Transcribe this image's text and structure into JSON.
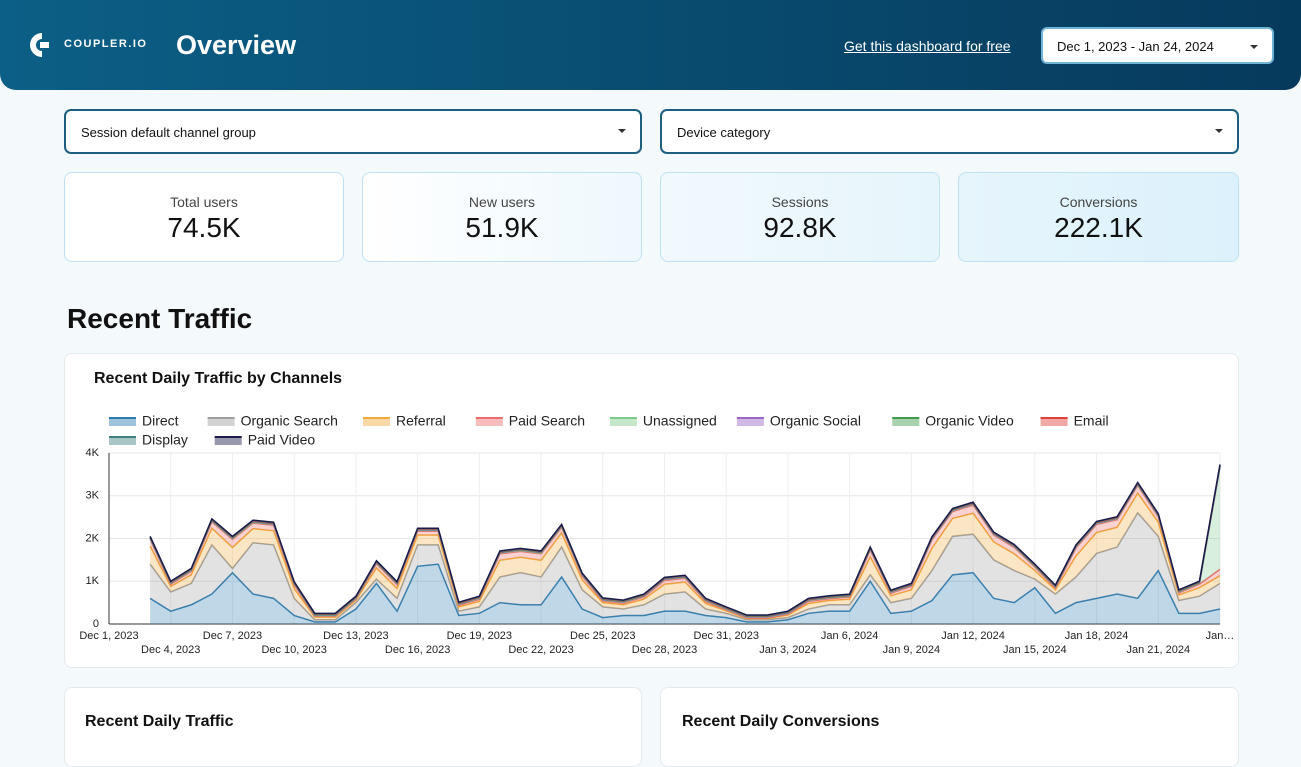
{
  "header": {
    "brand": "COUPLER.IO",
    "title": "Overview",
    "link": "Get this dashboard for free",
    "date_range": "Dec 1, 2023 - Jan 24, 2024"
  },
  "filters": [
    "Session default channel group",
    "Device category"
  ],
  "kpis": [
    {
      "label": "Total users",
      "value": "74.5K"
    },
    {
      "label": "New users",
      "value": "51.9K"
    },
    {
      "label": "Sessions",
      "value": "92.8K"
    },
    {
      "label": "Conversions",
      "value": "222.1K"
    }
  ],
  "section_title": "Recent Traffic",
  "bottom_cards": [
    "Recent Daily Traffic",
    "Recent Daily Conversions"
  ],
  "chart_data": {
    "type": "stacked_area",
    "title": "Recent Daily Traffic by Channels",
    "categories": [
      "Dec 1, 2023",
      null,
      null,
      "Dec 4, 2023",
      null,
      null,
      "Dec 7, 2023",
      null,
      null,
      "Dec 10, 2023",
      null,
      null,
      "Dec 13, 2023",
      null,
      null,
      "Dec 16, 2023",
      null,
      null,
      "Dec 19, 2023",
      null,
      null,
      "Dec 22, 2023",
      null,
      null,
      "Dec 25, 2023",
      null,
      null,
      "Dec 28, 2023",
      null,
      null,
      "Dec 31, 2023",
      null,
      null,
      "Jan 3, 2024",
      null,
      null,
      "Jan 6, 2024",
      null,
      null,
      "Jan 9, 2024",
      null,
      null,
      "Jan 12, 2024",
      null,
      null,
      "Jan 15, 2024",
      null,
      null,
      "Jan 18, 2024",
      null,
      null,
      "Jan 21, 2024",
      null,
      null,
      "Jan…"
    ],
    "ylim": [
      0,
      4000
    ],
    "yticks": [
      0,
      {
        "value": 1000,
        "label": "1K"
      },
      {
        "value": 2000,
        "label": "2K"
      },
      {
        "value": 3000,
        "label": "3K"
      },
      {
        "value": 4000,
        "label": "4K"
      }
    ],
    "grid": true,
    "legend": "top",
    "series": [
      {
        "name": "Direct",
        "color": "#2a7bb0",
        "values": [
          null,
          null,
          600,
          300,
          450,
          700,
          1200,
          700,
          600,
          200,
          50,
          50,
          350,
          950,
          300,
          1350,
          1400,
          200,
          250,
          500,
          450,
          450,
          1100,
          350,
          150,
          200,
          200,
          300,
          300,
          200,
          150,
          50,
          50,
          100,
          250,
          300,
          300,
          1000,
          250,
          300,
          550,
          1150,
          1200,
          600,
          500,
          850,
          250,
          500,
          600,
          700,
          600,
          1250,
          250,
          250,
          350
        ]
      },
      {
        "name": "Organic Search",
        "color": "#9e9e9e",
        "values": [
          null,
          null,
          800,
          450,
          500,
          1150,
          100,
          1200,
          1250,
          400,
          50,
          50,
          150,
          100,
          300,
          500,
          450,
          100,
          150,
          600,
          750,
          650,
          700,
          450,
          250,
          150,
          250,
          400,
          450,
          150,
          100,
          50,
          50,
          50,
          100,
          150,
          150,
          150,
          250,
          300,
          700,
          900,
          900,
          900,
          750,
          200,
          450,
          600,
          1050,
          1100,
          2000,
          800,
          300,
          400,
          600
        ]
      },
      {
        "name": "Referral",
        "color": "#f0a93a",
        "values": [
          null,
          null,
          420,
          130,
          200,
          390,
          490,
          330,
          330,
          230,
          60,
          60,
          60,
          260,
          230,
          230,
          230,
          100,
          130,
          390,
          360,
          390,
          330,
          230,
          100,
          100,
          130,
          230,
          230,
          130,
          60,
          30,
          30,
          60,
          130,
          100,
          130,
          420,
          160,
          200,
          520,
          420,
          490,
          420,
          390,
          200,
          100,
          490,
          490,
          460,
          460,
          330,
          130,
          200,
          180
        ]
      },
      {
        "name": "Paid Search",
        "color": "#ee6b6b",
        "values": [
          null,
          null,
          160,
          50,
          80,
          150,
          190,
          130,
          130,
          90,
          20,
          20,
          20,
          100,
          90,
          90,
          90,
          40,
          50,
          150,
          140,
          150,
          130,
          90,
          40,
          40,
          50,
          90,
          90,
          50,
          20,
          10,
          10,
          20,
          50,
          40,
          50,
          160,
          60,
          80,
          200,
          160,
          190,
          160,
          150,
          80,
          40,
          190,
          190,
          180,
          180,
          130,
          50,
          80,
          150
        ]
      },
      {
        "name": "Unassigned",
        "color": "#7cc98a",
        "values": [
          null,
          null,
          20,
          20,
          20,
          20,
          20,
          20,
          20,
          20,
          20,
          20,
          20,
          20,
          20,
          20,
          20,
          20,
          20,
          20,
          20,
          20,
          20,
          20,
          20,
          20,
          20,
          20,
          20,
          20,
          20,
          20,
          20,
          20,
          20,
          20,
          20,
          20,
          20,
          20,
          20,
          20,
          20,
          20,
          20,
          20,
          20,
          20,
          20,
          20,
          20,
          20,
          20,
          20,
          2400
        ]
      },
      {
        "name": "Organic Social",
        "color": "#9a64c8",
        "values": [
          null,
          null,
          10,
          10,
          10,
          10,
          10,
          10,
          10,
          10,
          10,
          10,
          10,
          10,
          10,
          10,
          10,
          10,
          10,
          10,
          10,
          10,
          10,
          10,
          10,
          10,
          10,
          10,
          10,
          10,
          10,
          10,
          10,
          10,
          10,
          10,
          10,
          10,
          10,
          10,
          10,
          10,
          10,
          10,
          10,
          10,
          10,
          10,
          10,
          10,
          10,
          10,
          10,
          10,
          10
        ]
      },
      {
        "name": "Organic Video",
        "color": "#3f9b4a",
        "values": [
          null,
          null,
          10,
          10,
          10,
          10,
          10,
          10,
          10,
          10,
          10,
          10,
          10,
          10,
          10,
          10,
          10,
          10,
          10,
          10,
          10,
          10,
          10,
          10,
          10,
          10,
          10,
          10,
          10,
          10,
          10,
          10,
          10,
          10,
          10,
          10,
          10,
          10,
          10,
          10,
          10,
          10,
          10,
          10,
          10,
          10,
          10,
          10,
          10,
          10,
          10,
          10,
          10,
          10,
          10
        ]
      },
      {
        "name": "Email",
        "color": "#e0403a",
        "values": [
          null,
          null,
          10,
          10,
          10,
          10,
          10,
          10,
          10,
          10,
          10,
          10,
          10,
          10,
          10,
          10,
          10,
          10,
          10,
          10,
          10,
          10,
          10,
          10,
          10,
          10,
          10,
          10,
          10,
          10,
          10,
          10,
          10,
          10,
          10,
          10,
          10,
          10,
          10,
          10,
          10,
          10,
          10,
          10,
          10,
          10,
          10,
          10,
          10,
          10,
          10,
          10,
          10,
          10,
          10
        ]
      },
      {
        "name": "Display",
        "color": "#3f7f86",
        "values": [
          null,
          null,
          10,
          10,
          10,
          10,
          10,
          10,
          10,
          10,
          10,
          10,
          10,
          10,
          10,
          10,
          10,
          10,
          10,
          10,
          10,
          10,
          10,
          10,
          10,
          10,
          10,
          10,
          10,
          10,
          10,
          10,
          10,
          10,
          10,
          10,
          10,
          10,
          10,
          10,
          10,
          10,
          10,
          10,
          10,
          10,
          10,
          10,
          10,
          10,
          10,
          10,
          10,
          10,
          10
        ]
      },
      {
        "name": "Paid Video",
        "color": "#1b1a4a",
        "values": [
          null,
          null,
          10,
          10,
          10,
          10,
          10,
          10,
          10,
          10,
          10,
          10,
          10,
          10,
          10,
          10,
          10,
          10,
          10,
          10,
          10,
          10,
          10,
          10,
          10,
          10,
          10,
          10,
          10,
          10,
          10,
          10,
          10,
          10,
          10,
          10,
          10,
          10,
          10,
          10,
          10,
          10,
          10,
          10,
          10,
          10,
          10,
          10,
          10,
          10,
          10,
          10,
          10,
          10,
          10
        ]
      }
    ]
  }
}
